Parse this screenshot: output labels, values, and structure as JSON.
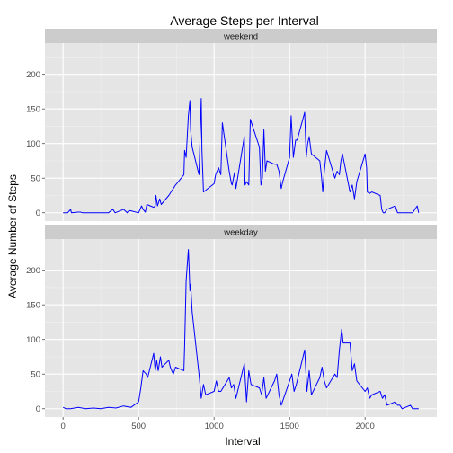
{
  "chart_data": {
    "type": "line",
    "title": "Average Steps per Interval",
    "xlabel": "Interval",
    "ylabel": "Average Number of Steps",
    "xlim": [
      -120,
      2475
    ],
    "ylim": [
      -12,
      245
    ],
    "x_ticks": [
      0,
      500,
      1000,
      1500,
      2000
    ],
    "y_ticks": [
      0,
      50,
      100,
      150,
      200
    ],
    "line_color": "#0000ff",
    "grid": true,
    "facets": [
      {
        "label": "weekend",
        "x": [
          0,
          30,
          50,
          55,
          100,
          115,
          130,
          200,
          300,
          330,
          345,
          400,
          425,
          430,
          445,
          500,
          520,
          530,
          545,
          555,
          600,
          610,
          615,
          625,
          640,
          650,
          700,
          715,
          730,
          745,
          800,
          805,
          815,
          830,
          840,
          845,
          855,
          900,
          915,
          920,
          930,
          1000,
          1010,
          1030,
          1045,
          1055,
          1100,
          1115,
          1120,
          1135,
          1145,
          1200,
          1205,
          1215,
          1230,
          1240,
          1300,
          1310,
          1320,
          1330,
          1340,
          1350,
          1400,
          1415,
          1430,
          1445,
          1455,
          1500,
          1510,
          1525,
          1540,
          1550,
          1600,
          1610,
          1620,
          1630,
          1645,
          1700,
          1710,
          1720,
          1730,
          1745,
          1800,
          1815,
          1830,
          1840,
          1850,
          1900,
          1915,
          1930,
          1945,
          2000,
          2010,
          2015,
          2030,
          2045,
          2100,
          2110,
          2120,
          2130,
          2145,
          2200,
          2215,
          2230,
          2245,
          2300,
          2315,
          2330,
          2345,
          2355
        ],
        "y": [
          0,
          0,
          5,
          0,
          1,
          1,
          0,
          0,
          0,
          5,
          0,
          5,
          0,
          2,
          3,
          0,
          10,
          5,
          1,
          12,
          8,
          10,
          25,
          10,
          20,
          12,
          25,
          30,
          35,
          40,
          55,
          90,
          80,
          140,
          162,
          120,
          95,
          55,
          165,
          90,
          30,
          42,
          55,
          65,
          55,
          130,
          60,
          42,
          40,
          58,
          35,
          110,
          40,
          45,
          40,
          135,
          95,
          40,
          50,
          120,
          60,
          75,
          70,
          70,
          60,
          35,
          45,
          80,
          140,
          80,
          105,
          105,
          145,
          80,
          100,
          110,
          85,
          75,
          55,
          30,
          60,
          90,
          50,
          60,
          55,
          75,
          85,
          30,
          40,
          20,
          45,
          85,
          65,
          30,
          28,
          30,
          25,
          5,
          0,
          0,
          5,
          10,
          0,
          0,
          0,
          0,
          0,
          5,
          10,
          0
        ]
      },
      {
        "label": "weekday",
        "x": [
          0,
          20,
          50,
          100,
          150,
          200,
          250,
          300,
          350,
          400,
          450,
          500,
          515,
          530,
          550,
          560,
          600,
          610,
          620,
          630,
          645,
          655,
          700,
          710,
          720,
          730,
          745,
          800,
          805,
          815,
          830,
          835,
          840,
          845,
          855,
          900,
          915,
          930,
          945,
          1000,
          1015,
          1030,
          1045,
          1100,
          1115,
          1130,
          1145,
          1200,
          1215,
          1230,
          1245,
          1300,
          1315,
          1330,
          1345,
          1400,
          1415,
          1430,
          1445,
          1500,
          1515,
          1530,
          1545,
          1600,
          1615,
          1630,
          1645,
          1700,
          1715,
          1730,
          1745,
          1800,
          1815,
          1830,
          1845,
          1855,
          1900,
          1915,
          1930,
          1945,
          2000,
          2015,
          2030,
          2045,
          2100,
          2115,
          2130,
          2145,
          2200,
          2215,
          2230,
          2245,
          2300,
          2315,
          2330,
          2345,
          2355
        ],
        "y": [
          2,
          0,
          0,
          2,
          0,
          1,
          0,
          2,
          1,
          4,
          2,
          10,
          30,
          55,
          50,
          45,
          80,
          55,
          70,
          55,
          75,
          60,
          70,
          60,
          55,
          50,
          60,
          55,
          90,
          185,
          230,
          200,
          170,
          180,
          140,
          50,
          15,
          35,
          20,
          25,
          40,
          25,
          25,
          45,
          30,
          35,
          15,
          65,
          10,
          55,
          35,
          30,
          20,
          45,
          15,
          40,
          50,
          20,
          5,
          40,
          50,
          25,
          35,
          85,
          25,
          55,
          20,
          45,
          60,
          40,
          30,
          50,
          45,
          85,
          115,
          95,
          95,
          55,
          65,
          40,
          25,
          30,
          15,
          20,
          25,
          15,
          20,
          5,
          10,
          5,
          5,
          0,
          5,
          0,
          0,
          0,
          0
        ]
      }
    ]
  }
}
